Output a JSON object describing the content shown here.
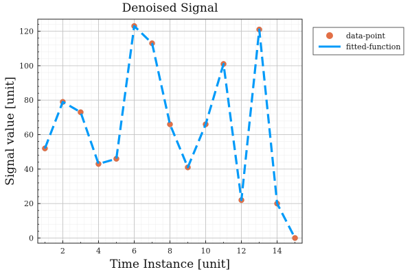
{
  "chart_data": {
    "type": "line",
    "title": "Denoised Signal",
    "xlabel": "Time Instance [unit]",
    "ylabel": "Signal value [unit]",
    "xlim": [
      0.6,
      15.4
    ],
    "ylim": [
      -3,
      127
    ],
    "xticks": [
      2,
      4,
      6,
      8,
      10,
      12,
      14
    ],
    "yticks": [
      0,
      20,
      40,
      60,
      80,
      100,
      120
    ],
    "grid": true,
    "legend_position": "outside-top-right",
    "series": [
      {
        "name": "data-point",
        "kind": "scatter",
        "color": "#e26f46",
        "x": [
          1,
          2,
          3,
          4,
          5,
          6,
          7,
          8,
          9,
          10,
          11,
          12,
          13,
          14,
          15
        ],
        "y": [
          52,
          79,
          73,
          43,
          46,
          123,
          113,
          66,
          41,
          66,
          101,
          22,
          121,
          20,
          0
        ]
      },
      {
        "name": "fitted-function",
        "kind": "line",
        "style": "dashed",
        "color": "#009af9",
        "x": [
          1,
          2,
          3,
          4,
          5,
          6,
          7,
          8,
          9,
          10,
          11,
          12,
          13,
          14,
          15
        ],
        "y": [
          52,
          79,
          73,
          43,
          46,
          123,
          113,
          66,
          41,
          66,
          101,
          22,
          121,
          20,
          0
        ]
      }
    ]
  }
}
